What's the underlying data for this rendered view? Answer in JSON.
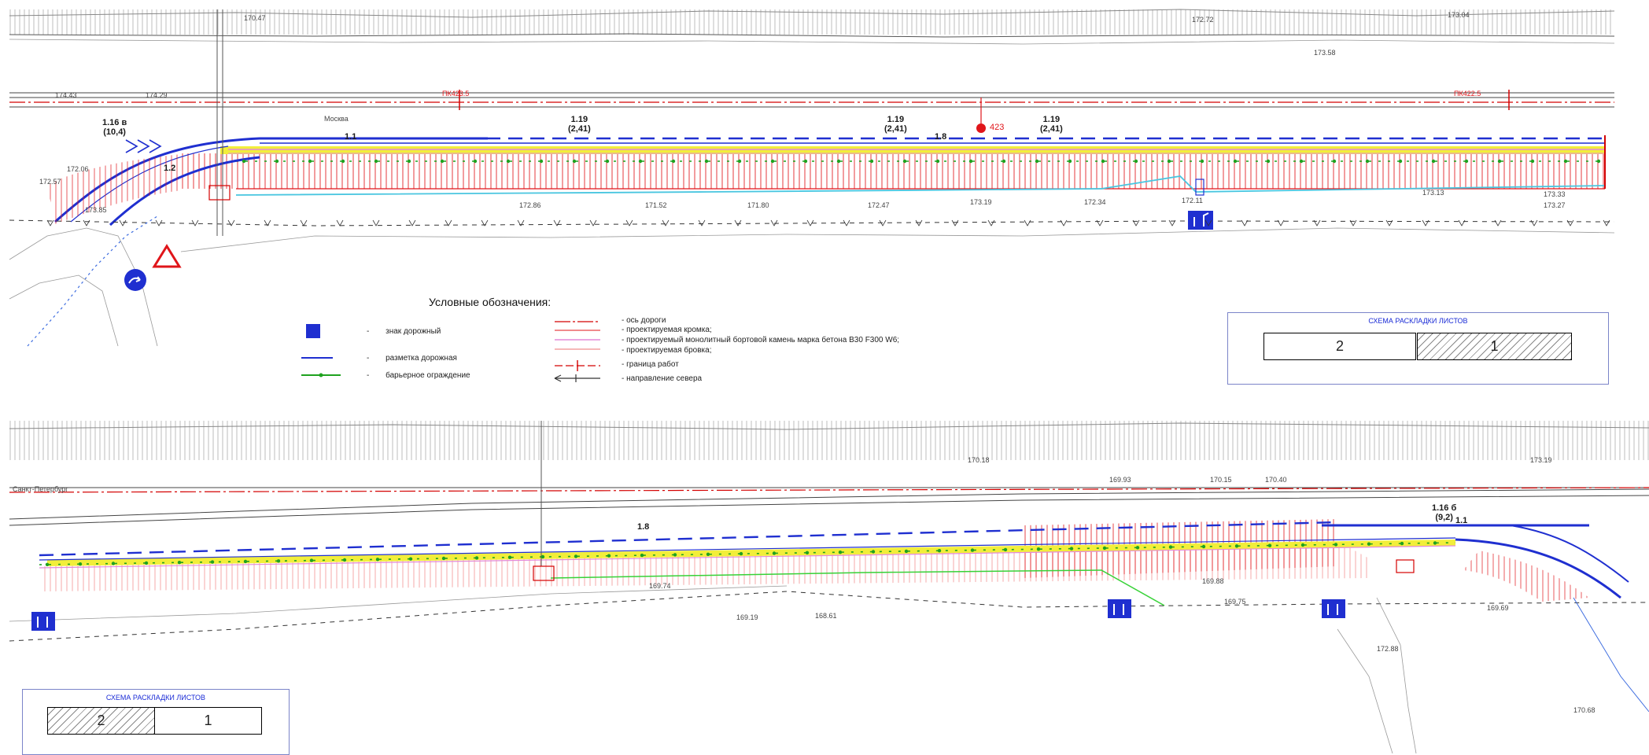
{
  "top_plan": {
    "pk_labels": [
      "ПК423.5",
      "ПК422.5"
    ],
    "km_post": "423",
    "markings": [
      {
        "code": "1.16 в",
        "width": "(10,4)"
      },
      {
        "code": "1.19",
        "width": "(2,41)"
      },
      {
        "code": "1.19",
        "width": "(2,41)"
      },
      {
        "code": "1.19",
        "width": "(2,41)"
      }
    ],
    "marking_short": [
      "1.1",
      "1.8",
      "1.2"
    ],
    "direction_label": "Москва",
    "elevations": [
      "174.43",
      "174.29",
      "170.47",
      "173.58",
      "173.04",
      "172.72",
      "172.57",
      "173.85",
      "172.06",
      "171.80",
      "172.86",
      "171.52",
      "172.47",
      "173.19",
      "172.34",
      "173.33",
      "173.27",
      "173.13",
      "172.11"
    ]
  },
  "legend": {
    "title": "Условные обозначения:",
    "items": [
      {
        "symbol": "sign",
        "text": "знак дорожный"
      },
      {
        "symbol": "marking",
        "text": "разметка дорожная"
      },
      {
        "symbol": "barrier",
        "text": "барьерное ограждение"
      }
    ],
    "right_items": [
      "- ось дороги",
      "- проектируемая кромка;",
      "- проектируемый монолитный бортовой камень марка бетона В30 F300 W6;",
      "- проектируемая бровка;",
      "- граница работ",
      "- направление севера"
    ],
    "dash": "-"
  },
  "sheet_layout_top": {
    "title": "СХЕМА РАСКЛАДКИ ЛИСТОВ",
    "sheets": [
      "2",
      "1"
    ]
  },
  "bottom_plan": {
    "direction_label": "Санкт-Петербург",
    "markings": [
      {
        "code": "1.16 б",
        "width": "(9,2)"
      }
    ],
    "marking_short": [
      "1.8",
      "1.1"
    ],
    "elevations": [
      "169.93",
      "170.15",
      "170.40",
      "169.74",
      "169.88",
      "168.61",
      "169.19",
      "169.75",
      "172.88",
      "173.19",
      "170.18",
      "169.69",
      "170.68"
    ]
  },
  "sheet_layout_bottom": {
    "title": "СХЕМА РАСКЛАДКИ ЛИСТОВ",
    "sheets": [
      "2",
      "1"
    ]
  },
  "colors": {
    "axis": "#d40000",
    "edge": "#e0151a",
    "curb": "#e38ad8",
    "marking": "#1f2fd0",
    "barrier": "#1fa21f",
    "yellow_fill": "#f2ee3a",
    "cyan": "#49c6e0"
  }
}
